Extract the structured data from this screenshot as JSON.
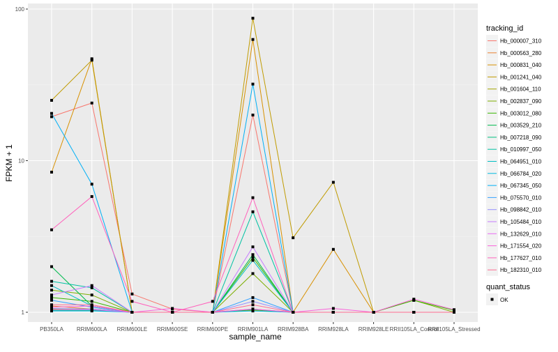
{
  "chart_data": {
    "type": "line",
    "xlabel": "sample_name",
    "ylabel": "FPKM + 1",
    "y_scale": "log10",
    "ylim": [
      0.9,
      100
    ],
    "y_ticks": [
      1,
      10,
      100
    ],
    "y_tick_labels": [
      "1",
      "10",
      "100"
    ],
    "grid": true,
    "legend_placement": "right",
    "categories": [
      "PB350LA",
      "RRIM600LA",
      "RRIM600LE",
      "RRIM600SE",
      "RRIM600PE",
      "RRIM901LA",
      "RRIM928BA",
      "RRIM928LA",
      "RRIM928LE",
      "RRII105LA_Control",
      "RRII105LA_Stressed"
    ],
    "color_legend_title": "tracking_id",
    "shape_legend_title": "quant_status",
    "shape_legend_items": [
      "OK"
    ],
    "series": [
      {
        "name": "Hb_000007_310",
        "color": "#F8766D",
        "values": [
          19.5,
          24,
          1.32,
          1.05,
          1,
          20,
          1,
          1,
          1,
          1,
          1
        ]
      },
      {
        "name": "Hb_000563_280",
        "color": "#EA8331",
        "values": [
          1.1,
          1.05,
          1,
          1,
          1,
          1.05,
          1,
          1,
          1,
          1,
          1
        ]
      },
      {
        "name": "Hb_000831_040",
        "color": "#D89000",
        "values": [
          8.4,
          47,
          1,
          1,
          1,
          63,
          1,
          2.6,
          1,
          1,
          1
        ]
      },
      {
        "name": "Hb_001241_040",
        "color": "#C09B00",
        "values": [
          25,
          46,
          1,
          1,
          1,
          87,
          3.1,
          7.2,
          1,
          1,
          1
        ]
      },
      {
        "name": "Hb_001604_110",
        "color": "#A3A500",
        "values": [
          1.05,
          1.05,
          1,
          1,
          1,
          1.03,
          1,
          1,
          1,
          1,
          1
        ]
      },
      {
        "name": "Hb_002837_090",
        "color": "#7CAE00",
        "values": [
          1.4,
          1.3,
          1,
          1,
          1,
          1.8,
          1,
          1,
          1,
          1.2,
          1
        ]
      },
      {
        "name": "Hb_003012_080",
        "color": "#39B600",
        "values": [
          1.25,
          1.18,
          1,
          1,
          1,
          2.3,
          1,
          1,
          1,
          1.2,
          1.03
        ]
      },
      {
        "name": "Hb_003529_210",
        "color": "#00BB4E",
        "values": [
          2,
          1.1,
          1,
          1,
          1,
          2.4,
          1,
          1,
          1,
          1,
          1
        ]
      },
      {
        "name": "Hb_007218_090",
        "color": "#00BF7D",
        "values": [
          1.03,
          1.03,
          1,
          1,
          1,
          1.04,
          1,
          1,
          1,
          1,
          1
        ]
      },
      {
        "name": "Hb_010997_050",
        "color": "#00C1A3",
        "values": [
          1.6,
          1.45,
          1,
          1,
          1,
          4.6,
          1,
          1,
          1,
          1,
          1
        ]
      },
      {
        "name": "Hb_064951_010",
        "color": "#00BFC4",
        "values": [
          1.5,
          1.1,
          1,
          1,
          1,
          2.2,
          1,
          1,
          1,
          1,
          1
        ]
      },
      {
        "name": "Hb_066784_020",
        "color": "#00BAE0",
        "values": [
          1.02,
          1.02,
          1,
          1,
          1,
          1.02,
          1,
          1,
          1,
          1,
          1
        ]
      },
      {
        "name": "Hb_067345_050",
        "color": "#00B0F6",
        "values": [
          20.5,
          7,
          1,
          1,
          1,
          32,
          1,
          1,
          1,
          1,
          1
        ]
      },
      {
        "name": "Hb_075570_010",
        "color": "#35A2FF",
        "values": [
          1.2,
          1.08,
          1,
          1,
          1,
          1.25,
          1,
          1,
          1,
          1,
          1
        ]
      },
      {
        "name": "Hb_098842_010",
        "color": "#9590FF",
        "values": [
          1.06,
          1.05,
          1,
          1,
          1,
          1.18,
          1,
          1,
          1,
          1,
          1
        ]
      },
      {
        "name": "Hb_105484_010",
        "color": "#C77CFF",
        "values": [
          1.3,
          1.5,
          1,
          1,
          1,
          2.7,
          1,
          1,
          1,
          1,
          1
        ]
      },
      {
        "name": "Hb_132629_010",
        "color": "#E76BF3",
        "values": [
          1.04,
          1.04,
          1,
          1,
          1,
          1.05,
          1,
          1,
          1,
          1,
          1
        ]
      },
      {
        "name": "Hb_171554_020",
        "color": "#FA62DB",
        "values": [
          1.08,
          1.1,
          1,
          1.06,
          1,
          1.05,
          1,
          1.06,
          1,
          1.22,
          1.04
        ]
      },
      {
        "name": "Hb_177627_010",
        "color": "#FF62BC",
        "values": [
          3.5,
          5.8,
          1.18,
          1,
          1.18,
          5.7,
          1,
          1,
          1,
          1,
          1
        ]
      },
      {
        "name": "Hb_182310_010",
        "color": "#FF6C91",
        "values": [
          1.12,
          1.12,
          1,
          1,
          1,
          1.12,
          1,
          1,
          1,
          1,
          1
        ]
      }
    ]
  }
}
